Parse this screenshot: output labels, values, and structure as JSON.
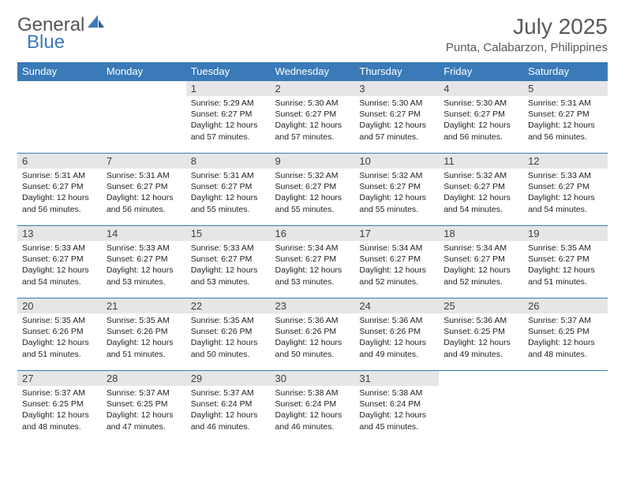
{
  "logo": {
    "word1": "General",
    "word2": "Blue"
  },
  "title": "July 2025",
  "location": "Punta, Calabarzon, Philippines",
  "colors": {
    "header_blue": "#3a7ab8",
    "daynum_bg": "#e6e6e6",
    "text_gray": "#595959"
  },
  "weekdays": [
    "Sunday",
    "Monday",
    "Tuesday",
    "Wednesday",
    "Thursday",
    "Friday",
    "Saturday"
  ],
  "weeks": [
    [
      {
        "num": "",
        "lines": [
          "",
          "",
          "",
          ""
        ]
      },
      {
        "num": "",
        "lines": [
          "",
          "",
          "",
          ""
        ]
      },
      {
        "num": "1",
        "lines": [
          "Sunrise: 5:29 AM",
          "Sunset: 6:27 PM",
          "Daylight: 12 hours",
          "and 57 minutes."
        ]
      },
      {
        "num": "2",
        "lines": [
          "Sunrise: 5:30 AM",
          "Sunset: 6:27 PM",
          "Daylight: 12 hours",
          "and 57 minutes."
        ]
      },
      {
        "num": "3",
        "lines": [
          "Sunrise: 5:30 AM",
          "Sunset: 6:27 PM",
          "Daylight: 12 hours",
          "and 57 minutes."
        ]
      },
      {
        "num": "4",
        "lines": [
          "Sunrise: 5:30 AM",
          "Sunset: 6:27 PM",
          "Daylight: 12 hours",
          "and 56 minutes."
        ]
      },
      {
        "num": "5",
        "lines": [
          "Sunrise: 5:31 AM",
          "Sunset: 6:27 PM",
          "Daylight: 12 hours",
          "and 56 minutes."
        ]
      }
    ],
    [
      {
        "num": "6",
        "lines": [
          "Sunrise: 5:31 AM",
          "Sunset: 6:27 PM",
          "Daylight: 12 hours",
          "and 56 minutes."
        ]
      },
      {
        "num": "7",
        "lines": [
          "Sunrise: 5:31 AM",
          "Sunset: 6:27 PM",
          "Daylight: 12 hours",
          "and 56 minutes."
        ]
      },
      {
        "num": "8",
        "lines": [
          "Sunrise: 5:31 AM",
          "Sunset: 6:27 PM",
          "Daylight: 12 hours",
          "and 55 minutes."
        ]
      },
      {
        "num": "9",
        "lines": [
          "Sunrise: 5:32 AM",
          "Sunset: 6:27 PM",
          "Daylight: 12 hours",
          "and 55 minutes."
        ]
      },
      {
        "num": "10",
        "lines": [
          "Sunrise: 5:32 AM",
          "Sunset: 6:27 PM",
          "Daylight: 12 hours",
          "and 55 minutes."
        ]
      },
      {
        "num": "11",
        "lines": [
          "Sunrise: 5:32 AM",
          "Sunset: 6:27 PM",
          "Daylight: 12 hours",
          "and 54 minutes."
        ]
      },
      {
        "num": "12",
        "lines": [
          "Sunrise: 5:33 AM",
          "Sunset: 6:27 PM",
          "Daylight: 12 hours",
          "and 54 minutes."
        ]
      }
    ],
    [
      {
        "num": "13",
        "lines": [
          "Sunrise: 5:33 AM",
          "Sunset: 6:27 PM",
          "Daylight: 12 hours",
          "and 54 minutes."
        ]
      },
      {
        "num": "14",
        "lines": [
          "Sunrise: 5:33 AM",
          "Sunset: 6:27 PM",
          "Daylight: 12 hours",
          "and 53 minutes."
        ]
      },
      {
        "num": "15",
        "lines": [
          "Sunrise: 5:33 AM",
          "Sunset: 6:27 PM",
          "Daylight: 12 hours",
          "and 53 minutes."
        ]
      },
      {
        "num": "16",
        "lines": [
          "Sunrise: 5:34 AM",
          "Sunset: 6:27 PM",
          "Daylight: 12 hours",
          "and 53 minutes."
        ]
      },
      {
        "num": "17",
        "lines": [
          "Sunrise: 5:34 AM",
          "Sunset: 6:27 PM",
          "Daylight: 12 hours",
          "and 52 minutes."
        ]
      },
      {
        "num": "18",
        "lines": [
          "Sunrise: 5:34 AM",
          "Sunset: 6:27 PM",
          "Daylight: 12 hours",
          "and 52 minutes."
        ]
      },
      {
        "num": "19",
        "lines": [
          "Sunrise: 5:35 AM",
          "Sunset: 6:27 PM",
          "Daylight: 12 hours",
          "and 51 minutes."
        ]
      }
    ],
    [
      {
        "num": "20",
        "lines": [
          "Sunrise: 5:35 AM",
          "Sunset: 6:26 PM",
          "Daylight: 12 hours",
          "and 51 minutes."
        ]
      },
      {
        "num": "21",
        "lines": [
          "Sunrise: 5:35 AM",
          "Sunset: 6:26 PM",
          "Daylight: 12 hours",
          "and 51 minutes."
        ]
      },
      {
        "num": "22",
        "lines": [
          "Sunrise: 5:35 AM",
          "Sunset: 6:26 PM",
          "Daylight: 12 hours",
          "and 50 minutes."
        ]
      },
      {
        "num": "23",
        "lines": [
          "Sunrise: 5:36 AM",
          "Sunset: 6:26 PM",
          "Daylight: 12 hours",
          "and 50 minutes."
        ]
      },
      {
        "num": "24",
        "lines": [
          "Sunrise: 5:36 AM",
          "Sunset: 6:26 PM",
          "Daylight: 12 hours",
          "and 49 minutes."
        ]
      },
      {
        "num": "25",
        "lines": [
          "Sunrise: 5:36 AM",
          "Sunset: 6:25 PM",
          "Daylight: 12 hours",
          "and 49 minutes."
        ]
      },
      {
        "num": "26",
        "lines": [
          "Sunrise: 5:37 AM",
          "Sunset: 6:25 PM",
          "Daylight: 12 hours",
          "and 48 minutes."
        ]
      }
    ],
    [
      {
        "num": "27",
        "lines": [
          "Sunrise: 5:37 AM",
          "Sunset: 6:25 PM",
          "Daylight: 12 hours",
          "and 48 minutes."
        ]
      },
      {
        "num": "28",
        "lines": [
          "Sunrise: 5:37 AM",
          "Sunset: 6:25 PM",
          "Daylight: 12 hours",
          "and 47 minutes."
        ]
      },
      {
        "num": "29",
        "lines": [
          "Sunrise: 5:37 AM",
          "Sunset: 6:24 PM",
          "Daylight: 12 hours",
          "and 46 minutes."
        ]
      },
      {
        "num": "30",
        "lines": [
          "Sunrise: 5:38 AM",
          "Sunset: 6:24 PM",
          "Daylight: 12 hours",
          "and 46 minutes."
        ]
      },
      {
        "num": "31",
        "lines": [
          "Sunrise: 5:38 AM",
          "Sunset: 6:24 PM",
          "Daylight: 12 hours",
          "and 45 minutes."
        ]
      },
      {
        "num": "",
        "lines": [
          "",
          "",
          "",
          ""
        ]
      },
      {
        "num": "",
        "lines": [
          "",
          "",
          "",
          ""
        ]
      }
    ]
  ]
}
